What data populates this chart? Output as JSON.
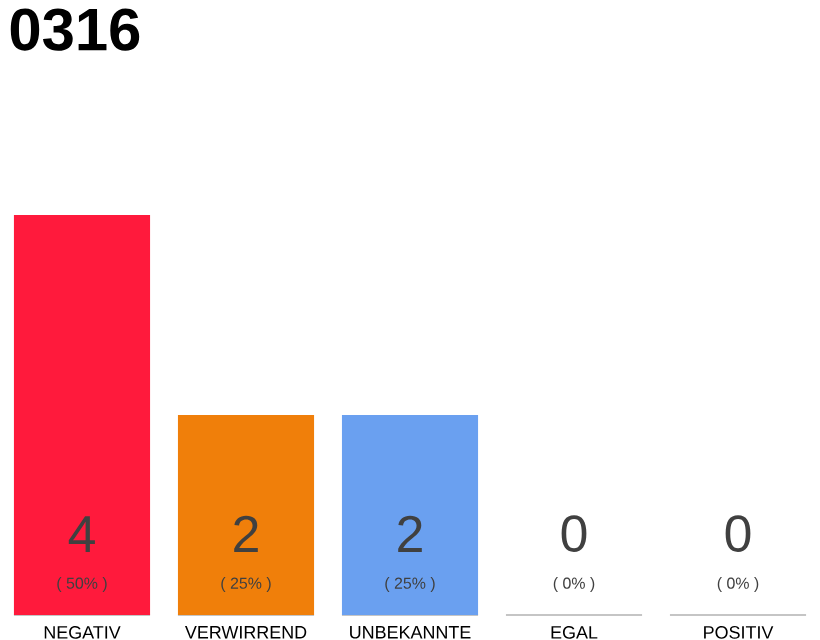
{
  "chart_data": {
    "type": "bar",
    "title": "0316",
    "categories": [
      "NEGATIV",
      "VERWIRREND",
      "UNBEKANNTE",
      "EGAL",
      "POSITIV"
    ],
    "values": [
      4,
      2,
      2,
      0,
      0
    ],
    "colors": [
      "#ff1a3c",
      "#f07f0a",
      "#6aa0f0",
      "#cccccc",
      "#cccccc"
    ],
    "data_labels": true,
    "annotations": [
      "( 50% )",
      "( 25% )",
      "( 25% )",
      "( 0% )",
      "( 0% )"
    ]
  }
}
